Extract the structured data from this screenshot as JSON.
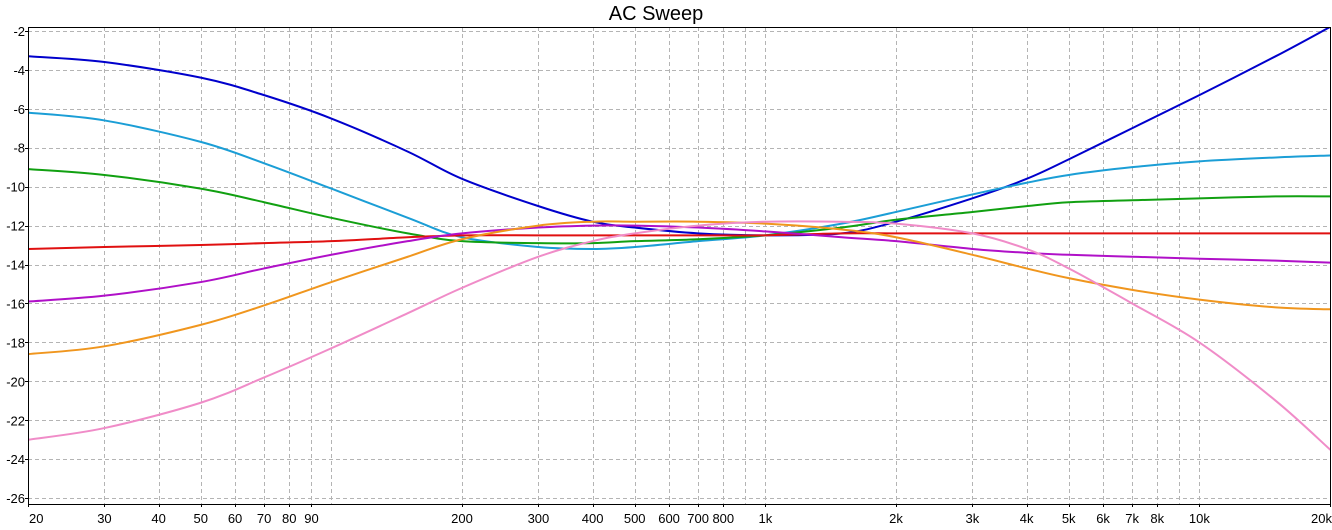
{
  "chart_data": {
    "type": "line",
    "title": "AC Sweep",
    "xlabel": "",
    "ylabel": "",
    "x_scale": "log",
    "xlim": [
      20,
      20000
    ],
    "ylim": [
      -26.3,
      -1.8
    ],
    "grid": true,
    "x_ticks": [
      {
        "value": 20,
        "label": "20"
      },
      {
        "value": 30,
        "label": "30"
      },
      {
        "value": 40,
        "label": "40"
      },
      {
        "value": 50,
        "label": "50"
      },
      {
        "value": 60,
        "label": "60"
      },
      {
        "value": 70,
        "label": "70"
      },
      {
        "value": 80,
        "label": "80"
      },
      {
        "value": 90,
        "label": "90"
      },
      {
        "value": 200,
        "label": "200"
      },
      {
        "value": 300,
        "label": "300"
      },
      {
        "value": 400,
        "label": "400"
      },
      {
        "value": 500,
        "label": "500"
      },
      {
        "value": 600,
        "label": "600"
      },
      {
        "value": 700,
        "label": "700"
      },
      {
        "value": 800,
        "label": "800"
      },
      {
        "value": 1000,
        "label": "1k"
      },
      {
        "value": 2000,
        "label": "2k"
      },
      {
        "value": 3000,
        "label": "3k"
      },
      {
        "value": 4000,
        "label": "4k"
      },
      {
        "value": 5000,
        "label": "5k"
      },
      {
        "value": 6000,
        "label": "6k"
      },
      {
        "value": 7000,
        "label": "7k"
      },
      {
        "value": 8000,
        "label": "8k"
      },
      {
        "value": 10000,
        "label": "10k"
      },
      {
        "value": 20000,
        "label": "20k"
      }
    ],
    "x_grid": [
      20,
      30,
      40,
      50,
      60,
      70,
      80,
      90,
      100,
      200,
      300,
      400,
      500,
      600,
      700,
      800,
      900,
      1000,
      2000,
      3000,
      4000,
      5000,
      6000,
      7000,
      8000,
      9000,
      10000,
      20000
    ],
    "y_ticks": [
      -2,
      -4,
      -6,
      -8,
      -10,
      -12,
      -14,
      -16,
      -18,
      -20,
      -22,
      -24,
      -26
    ],
    "x": [
      20,
      30,
      50,
      70,
      100,
      150,
      200,
      300,
      400,
      500,
      700,
      1000,
      1500,
      2000,
      3000,
      4000,
      5000,
      7000,
      10000,
      15000,
      20000
    ],
    "series": [
      {
        "color": "#0000cc",
        "values": [
          -3.3,
          -3.6,
          -4.4,
          -5.3,
          -6.5,
          -8.2,
          -9.6,
          -11.0,
          -11.8,
          -12.1,
          -12.4,
          -12.5,
          -12.4,
          -11.8,
          -10.6,
          -9.6,
          -8.6,
          -7.0,
          -5.3,
          -3.3,
          -1.8
        ]
      },
      {
        "color": "#1b9ed6",
        "values": [
          -6.2,
          -6.6,
          -7.7,
          -8.8,
          -10.1,
          -11.6,
          -12.6,
          -13.1,
          -13.2,
          -13.1,
          -12.8,
          -12.5,
          -11.9,
          -11.3,
          -10.4,
          -9.8,
          -9.4,
          -9.0,
          -8.7,
          -8.5,
          -8.4
        ]
      },
      {
        "color": "#11a011",
        "values": [
          -9.1,
          -9.4,
          -10.1,
          -10.8,
          -11.6,
          -12.4,
          -12.8,
          -12.9,
          -12.9,
          -12.8,
          -12.7,
          -12.5,
          -12.1,
          -11.7,
          -11.3,
          -11.0,
          -10.8,
          -10.7,
          -10.6,
          -10.5,
          -10.5
        ]
      },
      {
        "color": "#e01010",
        "values": [
          -13.2,
          -13.1,
          -13.0,
          -12.9,
          -12.8,
          -12.6,
          -12.5,
          -12.5,
          -12.5,
          -12.5,
          -12.5,
          -12.5,
          -12.4,
          -12.4,
          -12.4,
          -12.4,
          -12.4,
          -12.4,
          -12.4,
          -12.4,
          -12.4
        ]
      },
      {
        "color": "#b010c8",
        "values": [
          -15.9,
          -15.6,
          -14.9,
          -14.2,
          -13.5,
          -12.8,
          -12.4,
          -12.1,
          -12.0,
          -12.0,
          -12.1,
          -12.3,
          -12.6,
          -12.8,
          -13.2,
          -13.4,
          -13.5,
          -13.6,
          -13.7,
          -13.8,
          -13.9
        ]
      },
      {
        "color": "#f0961e",
        "values": [
          -18.6,
          -18.2,
          -17.1,
          -16.1,
          -14.9,
          -13.6,
          -12.7,
          -12.0,
          -11.8,
          -11.8,
          -11.8,
          -11.9,
          -12.2,
          -12.6,
          -13.5,
          -14.2,
          -14.7,
          -15.3,
          -15.8,
          -16.2,
          -16.3
        ]
      },
      {
        "color": "#f08cc8",
        "values": [
          -23.0,
          -22.4,
          -21.1,
          -19.8,
          -18.3,
          -16.5,
          -15.2,
          -13.6,
          -12.8,
          -12.4,
          -12.0,
          -11.8,
          -11.8,
          -11.9,
          -12.4,
          -13.2,
          -14.2,
          -16.0,
          -18.0,
          -21.0,
          -23.5
        ]
      }
    ]
  }
}
